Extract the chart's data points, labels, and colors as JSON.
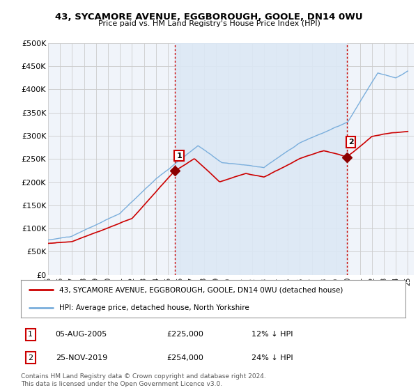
{
  "title_line1": "43, SYCAMORE AVENUE, EGGBOROUGH, GOOLE, DN14 0WU",
  "title_line2": "Price paid vs. HM Land Registry's House Price Index (HPI)",
  "ylim": [
    0,
    500000
  ],
  "yticks": [
    0,
    50000,
    100000,
    150000,
    200000,
    250000,
    300000,
    350000,
    400000,
    450000,
    500000
  ],
  "ytick_labels": [
    "£0",
    "£50K",
    "£100K",
    "£150K",
    "£200K",
    "£250K",
    "£300K",
    "£350K",
    "£400K",
    "£450K",
    "£500K"
  ],
  "hpi_color": "#7aaedc",
  "price_color": "#cc0000",
  "background_color": "#ffffff",
  "chart_bg_color": "#f0f4fa",
  "grid_color": "#cccccc",
  "shade_color": "#dce8f5",
  "sale1_date": 2005.58,
  "sale1_price": 225000,
  "sale1_label": "1",
  "sale2_date": 2019.9,
  "sale2_price": 254000,
  "sale2_label": "2",
  "vline_color": "#cc0000",
  "legend_label_red": "43, SYCAMORE AVENUE, EGGBOROUGH, GOOLE, DN14 0WU (detached house)",
  "legend_label_blue": "HPI: Average price, detached house, North Yorkshire",
  "table_row1": [
    "1",
    "05-AUG-2005",
    "£225,000",
    "12% ↓ HPI"
  ],
  "table_row2": [
    "2",
    "25-NOV-2019",
    "£254,000",
    "24% ↓ HPI"
  ],
  "footnote": "Contains HM Land Registry data © Crown copyright and database right 2024.\nThis data is licensed under the Open Government Licence v3.0.",
  "xlim_start": 1995,
  "xlim_end": 2025.5
}
